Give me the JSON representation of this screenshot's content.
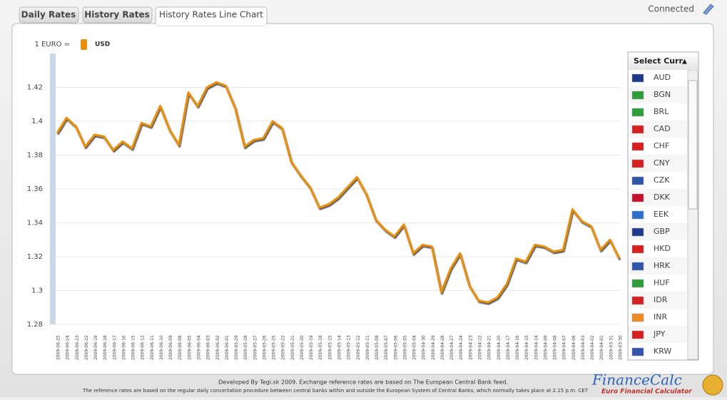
{
  "ui": {
    "tabs": [
      "Daily Rates",
      "History Rates",
      "History Rates Line Chart"
    ],
    "status": "Connected",
    "select_header": "Select Curr",
    "select_arrow": "▲",
    "currencies": [
      "AUD",
      "BGN",
      "BRL",
      "CAD",
      "CHF",
      "CNY",
      "CZK",
      "DKK",
      "EEK",
      "GBP",
      "HKD",
      "HRK",
      "HUF",
      "IDR",
      "INR",
      "JPY",
      "KRW"
    ],
    "footer": [
      "Developed By Tegi.sk 2009. Exchange reference rates are based on The European Central Bank feed.",
      "The reference rates are based on the regular daily concertation procedure between central banks within and outside the European System of Central Banks, which normally takes place at 2.15 p.m. CET"
    ],
    "logo": "FinanceCalc",
    "logo_sub": "Euro Financial Calculator"
  },
  "chart_data": {
    "type": "line",
    "legend_label": "1 EURO =",
    "x": [
      "2009-06-25",
      "2009-06-24",
      "2009-06-23",
      "2009-06-22",
      "2009-06-19",
      "2009-06-18",
      "2009-06-17",
      "2009-06-16",
      "2009-06-15",
      "2009-06-12",
      "2009-06-11",
      "2009-06-10",
      "2009-06-09",
      "2009-06-08",
      "2009-06-05",
      "2009-06-04",
      "2009-06-03",
      "2009-06-02",
      "2009-06-01",
      "2009-05-29",
      "2009-05-28",
      "2009-05-27",
      "2009-05-26",
      "2009-05-25",
      "2009-05-22",
      "2009-05-21",
      "2009-05-20",
      "2009-05-19",
      "2009-05-18",
      "2009-05-15",
      "2009-05-14",
      "2009-05-13",
      "2009-05-12",
      "2009-05-11",
      "2009-05-08",
      "2009-05-07",
      "2009-05-06",
      "2009-05-05",
      "2009-05-04",
      "2009-04-30",
      "2009-04-29",
      "2009-04-28",
      "2009-04-27",
      "2009-04-24",
      "2009-04-23",
      "2009-04-22",
      "2009-04-21",
      "2009-04-20",
      "2009-04-17",
      "2009-04-16",
      "2009-04-15",
      "2009-04-14",
      "2009-04-09",
      "2009-04-08",
      "2009-04-07",
      "2009-04-06",
      "2009-04-03",
      "2009-04-02",
      "2009-04-01",
      "2009-03-31",
      "2009-03-30"
    ],
    "series": [
      {
        "name": "USD",
        "color": "#e8900c",
        "values": [
          1.393,
          1.402,
          1.397,
          1.385,
          1.392,
          1.391,
          1.383,
          1.388,
          1.384,
          1.399,
          1.397,
          1.409,
          1.395,
          1.386,
          1.417,
          1.409,
          1.42,
          1.423,
          1.421,
          1.408,
          1.385,
          1.389,
          1.39,
          1.4,
          1.396,
          1.376,
          1.368,
          1.361,
          1.349,
          1.351,
          1.355,
          1.361,
          1.367,
          1.357,
          1.342,
          1.336,
          1.332,
          1.339,
          1.322,
          1.327,
          1.326,
          1.299,
          1.313,
          1.322,
          1.303,
          1.294,
          1.293,
          1.296,
          1.304,
          1.319,
          1.317,
          1.327,
          1.326,
          1.323,
          1.324,
          1.348,
          1.341,
          1.338,
          1.324,
          1.33,
          1.319
        ]
      }
    ],
    "ylim": [
      1.28,
      1.44
    ],
    "yticks": [
      1.28,
      1.3,
      1.32,
      1.34,
      1.36,
      1.38,
      1.4,
      1.42
    ],
    "grid": true
  }
}
